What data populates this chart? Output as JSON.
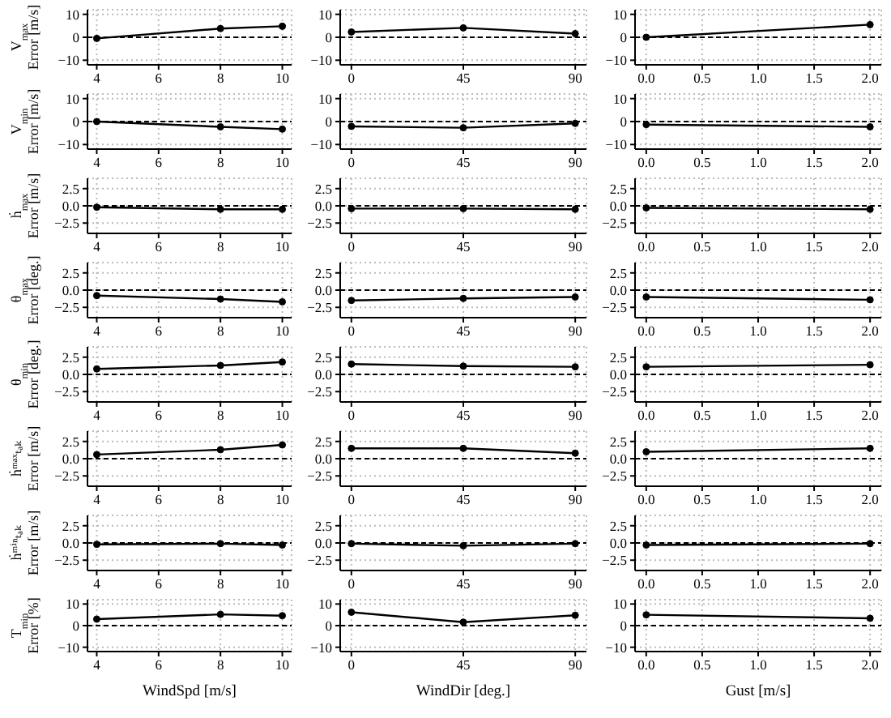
{
  "chart_data": [
    {
      "type": "line",
      "ylabel": "V$_{max}$\nError [m/s]",
      "x": [
        4,
        8,
        10
      ],
      "series": [
        {
          "color": "#000000",
          "values": [
            -0.5,
            3.8,
            4.8
          ]
        }
      ],
      "xlim": [
        3.7,
        10.3
      ],
      "xticks": [
        4,
        6,
        8,
        10
      ],
      "ylim": [
        -12,
        12
      ],
      "yticks": [
        {
          "value": -10,
          "label": "−10"
        },
        0,
        10
      ],
      "ref_lines": [
        {
          "axis": "y",
          "value": 0,
          "color": "#000000",
          "line_style": "dashed"
        }
      ],
      "grid": true,
      "marker": "circle"
    },
    {
      "type": "line",
      "x": [
        0,
        45,
        90
      ],
      "series": [
        {
          "color": "#000000",
          "values": [
            2.3,
            4.1,
            1.6
          ]
        }
      ],
      "xlim": [
        -4.5,
        94.5
      ],
      "xticks": [
        0,
        45,
        90
      ],
      "ylim": [
        -12,
        12
      ],
      "yticks": [
        {
          "value": -10,
          "label": "−10"
        },
        0,
        10
      ],
      "ref_lines": [
        {
          "axis": "y",
          "value": 0,
          "color": "#000000",
          "line_style": "dashed"
        }
      ],
      "grid": true,
      "marker": "circle"
    },
    {
      "type": "line",
      "x": [
        0,
        2
      ],
      "series": [
        {
          "color": "#000000",
          "values": [
            0,
            5.5
          ]
        }
      ],
      "xlim": [
        -0.1,
        2.1
      ],
      "xticks": [
        {
          "value": 0,
          "label": "0.0"
        },
        0.5,
        {
          "value": 1,
          "label": "1.0"
        },
        1.5,
        {
          "value": 2,
          "label": "2.0"
        }
      ],
      "ylim": [
        -12,
        12
      ],
      "yticks": [
        {
          "value": -10,
          "label": "−10"
        },
        0,
        10
      ],
      "ref_lines": [
        {
          "axis": "y",
          "value": 0,
          "color": "#000000",
          "line_style": "dashed"
        }
      ],
      "grid": true,
      "marker": "circle"
    },
    {
      "type": "line",
      "ylabel": "V$_{min}$\nError [m/s]",
      "x": [
        4,
        8,
        10
      ],
      "series": [
        {
          "color": "#000000",
          "values": [
            0,
            -2.3,
            -3.3
          ]
        }
      ],
      "xlim": [
        3.7,
        10.3
      ],
      "xticks": [
        4,
        6,
        8,
        10
      ],
      "ylim": [
        -12,
        12
      ],
      "yticks": [
        {
          "value": -10,
          "label": "−10"
        },
        0,
        10
      ],
      "ref_lines": [
        {
          "axis": "y",
          "value": 0,
          "color": "#000000",
          "line_style": "dashed"
        }
      ],
      "grid": true,
      "marker": "circle"
    },
    {
      "type": "line",
      "x": [
        0,
        45,
        90
      ],
      "series": [
        {
          "color": "#000000",
          "values": [
            -2.1,
            -2.7,
            -0.8
          ]
        }
      ],
      "xlim": [
        -4.5,
        94.5
      ],
      "xticks": [
        0,
        45,
        90
      ],
      "ylim": [
        -12,
        12
      ],
      "yticks": [
        {
          "value": -10,
          "label": "−10"
        },
        0,
        10
      ],
      "ref_lines": [
        {
          "axis": "y",
          "value": 0,
          "color": "#000000",
          "line_style": "dashed"
        }
      ],
      "grid": true,
      "marker": "circle"
    },
    {
      "type": "line",
      "x": [
        0,
        2
      ],
      "series": [
        {
          "color": "#000000",
          "values": [
            -1.3,
            -2.3
          ]
        }
      ],
      "xlim": [
        -0.1,
        2.1
      ],
      "xticks": [
        {
          "value": 0,
          "label": "0.0"
        },
        0.5,
        {
          "value": 1,
          "label": "1.0"
        },
        1.5,
        {
          "value": 2,
          "label": "2.0"
        }
      ],
      "ylim": [
        -12,
        12
      ],
      "yticks": [
        {
          "value": -10,
          "label": "−10"
        },
        0,
        10
      ],
      "ref_lines": [
        {
          "axis": "y",
          "value": 0,
          "color": "#000000",
          "line_style": "dashed"
        }
      ],
      "grid": true,
      "marker": "circle"
    },
    {
      "type": "line",
      "ylabel": "ḣ$_{max}$\nError [m/s]",
      "x": [
        4,
        8,
        10
      ],
      "series": [
        {
          "color": "#000000",
          "values": [
            -0.2,
            -0.5,
            -0.5
          ]
        }
      ],
      "xlim": [
        3.7,
        10.3
      ],
      "xticks": [
        4,
        6,
        8,
        10
      ],
      "ylim": [
        -4,
        4
      ],
      "yticks": [
        {
          "value": -2.5,
          "label": "−2.5"
        },
        {
          "value": 0,
          "label": "0.0"
        },
        2.5
      ],
      "ref_lines": [
        {
          "axis": "y",
          "value": 0,
          "color": "#000000",
          "line_style": "dashed"
        }
      ],
      "grid": true,
      "marker": "circle"
    },
    {
      "type": "line",
      "x": [
        0,
        45,
        90
      ],
      "series": [
        {
          "color": "#000000",
          "values": [
            -0.4,
            -0.4,
            -0.5
          ]
        }
      ],
      "xlim": [
        -4.5,
        94.5
      ],
      "xticks": [
        0,
        45,
        90
      ],
      "ylim": [
        -4,
        4
      ],
      "yticks": [
        {
          "value": -2.5,
          "label": "−2.5"
        },
        {
          "value": 0,
          "label": "0.0"
        },
        2.5
      ],
      "ref_lines": [
        {
          "axis": "y",
          "value": 0,
          "color": "#000000",
          "line_style": "dashed"
        }
      ],
      "grid": true,
      "marker": "circle"
    },
    {
      "type": "line",
      "x": [
        0,
        2
      ],
      "series": [
        {
          "color": "#000000",
          "values": [
            -0.3,
            -0.5
          ]
        }
      ],
      "xlim": [
        -0.1,
        2.1
      ],
      "xticks": [
        {
          "value": 0,
          "label": "0.0"
        },
        0.5,
        {
          "value": 1,
          "label": "1.0"
        },
        1.5,
        {
          "value": 2,
          "label": "2.0"
        }
      ],
      "ylim": [
        -4,
        4
      ],
      "yticks": [
        {
          "value": -2.5,
          "label": "−2.5"
        },
        {
          "value": 0,
          "label": "0.0"
        },
        2.5
      ],
      "ref_lines": [
        {
          "axis": "y",
          "value": 0,
          "color": "#000000",
          "line_style": "dashed"
        }
      ],
      "grid": true,
      "marker": "circle"
    },
    {
      "type": "line",
      "ylabel": "θ$_{max}$\nError [deg.]",
      "x": [
        4,
        8,
        10
      ],
      "series": [
        {
          "color": "#000000",
          "values": [
            -0.8,
            -1.3,
            -1.7
          ]
        }
      ],
      "xlim": [
        3.7,
        10.3
      ],
      "xticks": [
        4,
        6,
        8,
        10
      ],
      "ylim": [
        -4,
        4
      ],
      "yticks": [
        {
          "value": -2.5,
          "label": "−2.5"
        },
        {
          "value": 0,
          "label": "0.0"
        },
        2.5
      ],
      "ref_lines": [
        {
          "axis": "y",
          "value": 0,
          "color": "#000000",
          "line_style": "dashed"
        }
      ],
      "grid": true,
      "marker": "circle"
    },
    {
      "type": "line",
      "x": [
        0,
        45,
        90
      ],
      "series": [
        {
          "color": "#000000",
          "values": [
            -1.5,
            -1.2,
            -1.0
          ]
        }
      ],
      "xlim": [
        -4.5,
        94.5
      ],
      "xticks": [
        0,
        45,
        90
      ],
      "ylim": [
        -4,
        4
      ],
      "yticks": [
        {
          "value": -2.5,
          "label": "−2.5"
        },
        {
          "value": 0,
          "label": "0.0"
        },
        2.5
      ],
      "ref_lines": [
        {
          "axis": "y",
          "value": 0,
          "color": "#000000",
          "line_style": "dashed"
        }
      ],
      "grid": true,
      "marker": "circle"
    },
    {
      "type": "line",
      "x": [
        0,
        2
      ],
      "series": [
        {
          "color": "#000000",
          "values": [
            -1.0,
            -1.4
          ]
        }
      ],
      "xlim": [
        -0.1,
        2.1
      ],
      "xticks": [
        {
          "value": 0,
          "label": "0.0"
        },
        0.5,
        {
          "value": 1,
          "label": "1.0"
        },
        1.5,
        {
          "value": 2,
          "label": "2.0"
        }
      ],
      "ylim": [
        -4,
        4
      ],
      "yticks": [
        {
          "value": -2.5,
          "label": "−2.5"
        },
        {
          "value": 0,
          "label": "0.0"
        },
        2.5
      ],
      "ref_lines": [
        {
          "axis": "y",
          "value": 0,
          "color": "#000000",
          "line_style": "dashed"
        }
      ],
      "grid": true,
      "marker": "circle"
    },
    {
      "type": "line",
      "ylabel": "θ$_{min}$\nError [deg.]",
      "x": [
        4,
        8,
        10
      ],
      "series": [
        {
          "color": "#000000",
          "values": [
            0.8,
            1.3,
            1.8
          ]
        }
      ],
      "xlim": [
        3.7,
        10.3
      ],
      "xticks": [
        4,
        6,
        8,
        10
      ],
      "ylim": [
        -4,
        4
      ],
      "yticks": [
        {
          "value": -2.5,
          "label": "−2.5"
        },
        {
          "value": 0,
          "label": "0.0"
        },
        2.5
      ],
      "ref_lines": [
        {
          "axis": "y",
          "value": 0,
          "color": "#000000",
          "line_style": "dashed"
        }
      ],
      "grid": true,
      "marker": "circle"
    },
    {
      "type": "line",
      "x": [
        0,
        45,
        90
      ],
      "series": [
        {
          "color": "#000000",
          "values": [
            1.5,
            1.2,
            1.1
          ]
        }
      ],
      "xlim": [
        -4.5,
        94.5
      ],
      "xticks": [
        0,
        45,
        90
      ],
      "ylim": [
        -4,
        4
      ],
      "yticks": [
        {
          "value": -2.5,
          "label": "−2.5"
        },
        {
          "value": 0,
          "label": "0.0"
        },
        2.5
      ],
      "ref_lines": [
        {
          "axis": "y",
          "value": 0,
          "color": "#000000",
          "line_style": "dashed"
        }
      ],
      "grid": true,
      "marker": "circle"
    },
    {
      "type": "line",
      "x": [
        0,
        2
      ],
      "series": [
        {
          "color": "#000000",
          "values": [
            1.1,
            1.4
          ]
        }
      ],
      "xlim": [
        -0.1,
        2.1
      ],
      "xticks": [
        {
          "value": 0,
          "label": "0.0"
        },
        0.5,
        {
          "value": 1,
          "label": "1.0"
        },
        1.5,
        {
          "value": 2,
          "label": "2.0"
        }
      ],
      "ylim": [
        -4,
        4
      ],
      "yticks": [
        {
          "value": -2.5,
          "label": "−2.5"
        },
        {
          "value": 0,
          "label": "0.0"
        },
        2.5
      ],
      "ref_lines": [
        {
          "axis": "y",
          "value": 0,
          "color": "#000000",
          "line_style": "dashed"
        }
      ],
      "grid": true,
      "marker": "circle"
    },
    {
      "type": "line",
      "ylabel": "ḣᵐᵃˣₜₐₖ\nError [m/s]",
      "x": [
        4,
        8,
        10
      ],
      "series": [
        {
          "color": "#000000",
          "values": [
            0.6,
            1.3,
            2.0
          ]
        }
      ],
      "xlim": [
        3.7,
        10.3
      ],
      "xticks": [
        4,
        6,
        8,
        10
      ],
      "ylim": [
        -4,
        4
      ],
      "yticks": [
        {
          "value": -2.5,
          "label": "−2.5"
        },
        {
          "value": 0,
          "label": "0.0"
        },
        2.5
      ],
      "ref_lines": [
        {
          "axis": "y",
          "value": 0,
          "color": "#000000",
          "line_style": "dashed"
        }
      ],
      "grid": true,
      "marker": "circle"
    },
    {
      "type": "line",
      "x": [
        0,
        45,
        90
      ],
      "series": [
        {
          "color": "#000000",
          "values": [
            1.5,
            1.5,
            0.8
          ]
        }
      ],
      "xlim": [
        -4.5,
        94.5
      ],
      "xticks": [
        0,
        45,
        90
      ],
      "ylim": [
        -4,
        4
      ],
      "yticks": [
        {
          "value": -2.5,
          "label": "−2.5"
        },
        {
          "value": 0,
          "label": "0.0"
        },
        2.5
      ],
      "ref_lines": [
        {
          "axis": "y",
          "value": 0,
          "color": "#000000",
          "line_style": "dashed"
        }
      ],
      "grid": true,
      "marker": "circle"
    },
    {
      "type": "line",
      "x": [
        0,
        2
      ],
      "series": [
        {
          "color": "#000000",
          "values": [
            1.0,
            1.5
          ]
        }
      ],
      "xlim": [
        -0.1,
        2.1
      ],
      "xticks": [
        {
          "value": 0,
          "label": "0.0"
        },
        0.5,
        {
          "value": 1,
          "label": "1.0"
        },
        1.5,
        {
          "value": 2,
          "label": "2.0"
        }
      ],
      "ylim": [
        -4,
        4
      ],
      "yticks": [
        {
          "value": -2.5,
          "label": "−2.5"
        },
        {
          "value": 0,
          "label": "0.0"
        },
        2.5
      ],
      "ref_lines": [
        {
          "axis": "y",
          "value": 0,
          "color": "#000000",
          "line_style": "dashed"
        }
      ],
      "grid": true,
      "marker": "circle"
    },
    {
      "type": "line",
      "ylabel": "ḣᵐⁱⁿₜₐₖ\nError [m/s]",
      "x": [
        4,
        8,
        10
      ],
      "series": [
        {
          "color": "#000000",
          "values": [
            -0.2,
            -0.1,
            -0.3
          ]
        }
      ],
      "xlim": [
        3.7,
        10.3
      ],
      "xticks": [
        4,
        6,
        8,
        10
      ],
      "ylim": [
        -4,
        4
      ],
      "yticks": [
        {
          "value": -2.5,
          "label": "−2.5"
        },
        {
          "value": 0,
          "label": "0.0"
        },
        2.5
      ],
      "ref_lines": [
        {
          "axis": "y",
          "value": 0,
          "color": "#000000",
          "line_style": "dashed"
        }
      ],
      "grid": true,
      "marker": "circle"
    },
    {
      "type": "line",
      "x": [
        0,
        45,
        90
      ],
      "series": [
        {
          "color": "#000000",
          "values": [
            -0.1,
            -0.4,
            -0.1
          ]
        }
      ],
      "xlim": [
        -4.5,
        94.5
      ],
      "xticks": [
        0,
        45,
        90
      ],
      "ylim": [
        -4,
        4
      ],
      "yticks": [
        {
          "value": -2.5,
          "label": "−2.5"
        },
        {
          "value": 0,
          "label": "0.0"
        },
        2.5
      ],
      "ref_lines": [
        {
          "axis": "y",
          "value": 0,
          "color": "#000000",
          "line_style": "dashed"
        }
      ],
      "grid": true,
      "marker": "circle"
    },
    {
      "type": "line",
      "x": [
        0,
        2
      ],
      "series": [
        {
          "color": "#000000",
          "values": [
            -0.3,
            -0.1
          ]
        }
      ],
      "xlim": [
        -0.1,
        2.1
      ],
      "xticks": [
        {
          "value": 0,
          "label": "0.0"
        },
        0.5,
        {
          "value": 1,
          "label": "1.0"
        },
        1.5,
        {
          "value": 2,
          "label": "2.0"
        }
      ],
      "ylim": [
        -4,
        4
      ],
      "yticks": [
        {
          "value": -2.5,
          "label": "−2.5"
        },
        {
          "value": 0,
          "label": "0.0"
        },
        2.5
      ],
      "ref_lines": [
        {
          "axis": "y",
          "value": 0,
          "color": "#000000",
          "line_style": "dashed"
        }
      ],
      "grid": true,
      "marker": "circle"
    },
    {
      "type": "line",
      "ylabel": "T$_{min}$\nError [%]",
      "xlabel": "WindSpd [m/s]",
      "x": [
        4,
        8,
        10
      ],
      "series": [
        {
          "color": "#000000",
          "values": [
            3,
            5.2,
            4.6
          ]
        }
      ],
      "xlim": [
        3.7,
        10.3
      ],
      "xticks": [
        4,
        6,
        8,
        10
      ],
      "ylim": [
        -12,
        12
      ],
      "yticks": [
        {
          "value": -10,
          "label": "−10"
        },
        0,
        10
      ],
      "ref_lines": [
        {
          "axis": "y",
          "value": 0,
          "color": "#000000",
          "line_style": "dashed"
        }
      ],
      "grid": true,
      "marker": "circle"
    },
    {
      "type": "line",
      "xlabel": "WindDir [deg.]",
      "x": [
        0,
        45,
        90
      ],
      "series": [
        {
          "color": "#000000",
          "values": [
            6.2,
            1.6,
            4.8
          ]
        }
      ],
      "xlim": [
        -4.5,
        94.5
      ],
      "xticks": [
        0,
        45,
        90
      ],
      "ylim": [
        -12,
        12
      ],
      "yticks": [
        {
          "value": -10,
          "label": "−10"
        },
        0,
        10
      ],
      "ref_lines": [
        {
          "axis": "y",
          "value": 0,
          "color": "#000000",
          "line_style": "dashed"
        }
      ],
      "grid": true,
      "marker": "circle"
    },
    {
      "type": "line",
      "xlabel": "Gust [m/s]",
      "x": [
        0,
        2
      ],
      "series": [
        {
          "color": "#000000",
          "values": [
            5,
            3.4
          ]
        }
      ],
      "xlim": [
        -0.1,
        2.1
      ],
      "xticks": [
        {
          "value": 0,
          "label": "0.0"
        },
        0.5,
        {
          "value": 1,
          "label": "1.0"
        },
        1.5,
        {
          "value": 2,
          "label": "2.0"
        }
      ],
      "ylim": [
        -12,
        12
      ],
      "yticks": [
        {
          "value": -10,
          "label": "−10"
        },
        0,
        10
      ],
      "ref_lines": [
        {
          "axis": "y",
          "value": 0,
          "color": "#000000",
          "line_style": "dashed"
        }
      ],
      "grid": true,
      "marker": "circle"
    }
  ]
}
